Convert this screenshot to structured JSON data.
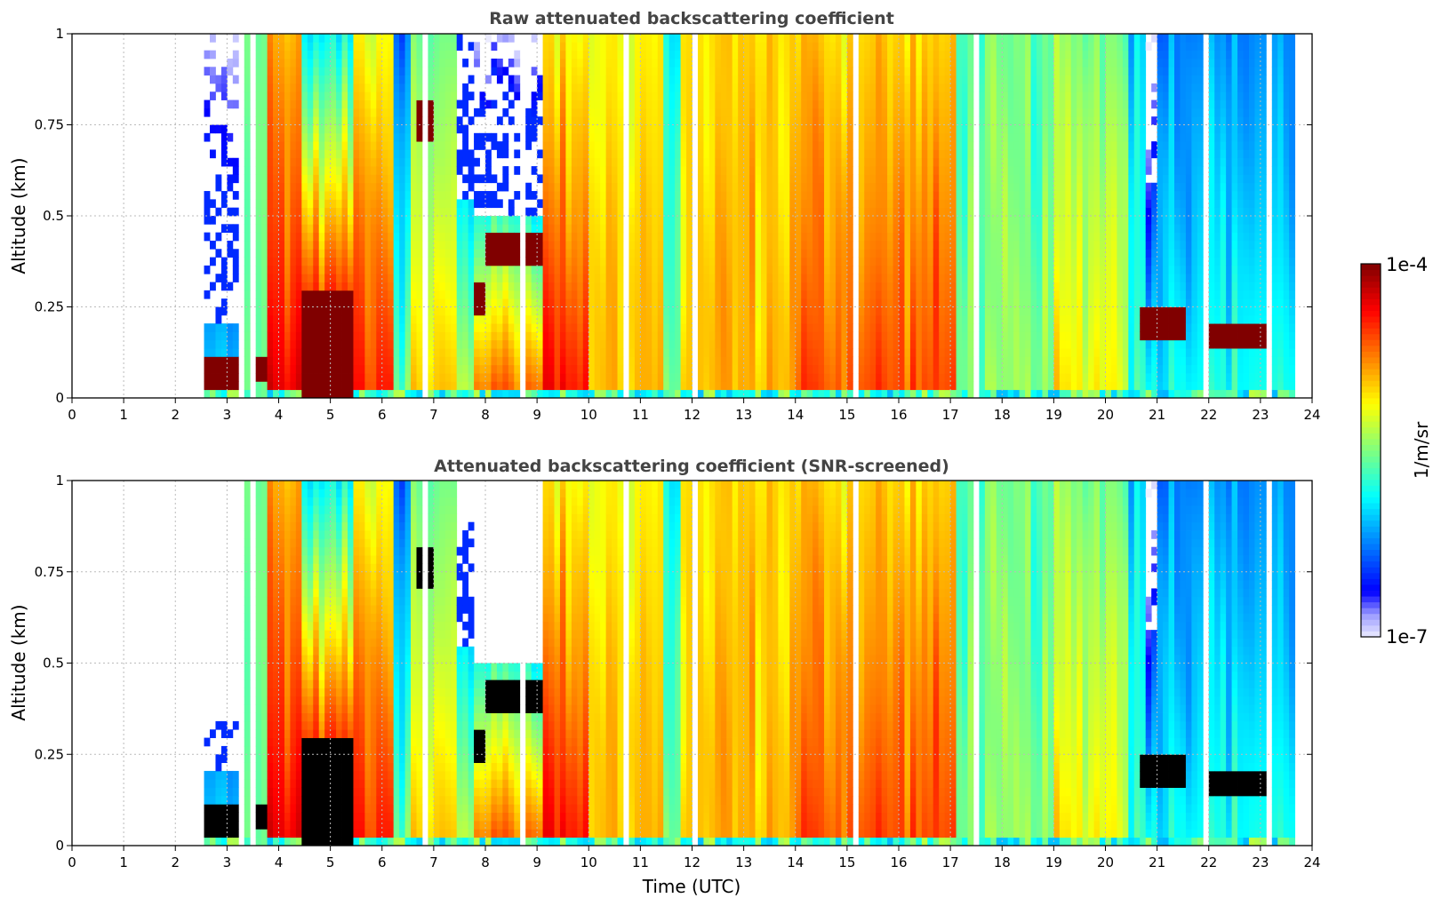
{
  "chart_data": [
    {
      "type": "heatmap",
      "title": "Raw attenuated backscattering coefficient",
      "xlabel": "",
      "ylabel": "Altitude (km)",
      "xlim": [
        0,
        24
      ],
      "ylim": [
        0,
        1
      ],
      "grid": true,
      "screened": false
    },
    {
      "type": "heatmap",
      "title": "Attenuated backscattering coefficient (SNR-screened)",
      "xlabel": "Time (UTC)",
      "ylabel": "Altitude (km)",
      "xlim": [
        0,
        24
      ],
      "ylim": [
        0,
        1
      ],
      "grid": true,
      "screened": true
    }
  ],
  "axes": {
    "xticks": [
      "0",
      "1",
      "2",
      "3",
      "4",
      "5",
      "6",
      "7",
      "8",
      "9",
      "10",
      "11",
      "12",
      "13",
      "14",
      "15",
      "16",
      "17",
      "18",
      "19",
      "20",
      "21",
      "22",
      "23",
      "24"
    ],
    "yticks": [
      {
        "v": 0,
        "label": "0"
      },
      {
        "v": 0.25,
        "label": "0.25"
      },
      {
        "v": 0.5,
        "label": "0.5"
      },
      {
        "v": 0.75,
        "label": "0.75"
      },
      {
        "v": 1,
        "label": "1"
      }
    ]
  },
  "colorbar": {
    "label": "1/m/sr",
    "max_label": "1e-4",
    "min_label": "1e-7",
    "log10_range": [
      -7,
      -4
    ],
    "colormap": "jet (white-lavender low end)"
  },
  "field": {
    "units": "log10(1/m/sr)",
    "saturation_log10": -4.05,
    "surface_band_log10": -5.7,
    "segments": [
      {
        "t0": 2.55,
        "t1": 3.35,
        "surface": -6.0,
        "top": -6.9,
        "sparse_above": 0.2,
        "screen_above": 0.35
      },
      {
        "t0": 3.35,
        "t1": 3.8,
        "surface": -5.5,
        "top": -5.5
      },
      {
        "t0": 3.8,
        "t1": 4.5,
        "surface": -4.3,
        "top": -4.9
      },
      {
        "t0": 4.5,
        "t1": 5.5,
        "surface": -4.0,
        "top": -5.9
      },
      {
        "t0": 5.5,
        "t1": 6.2,
        "surface": -4.4,
        "top": -5.1
      },
      {
        "t0": 6.2,
        "t1": 6.6,
        "surface": -5.5,
        "top": -6.3
      },
      {
        "t0": 6.6,
        "t1": 7.5,
        "surface": -5.0,
        "top": -5.6
      },
      {
        "t0": 7.5,
        "t1": 7.8,
        "surface": -5.3,
        "top": -6.5,
        "sparse_above": 0.55,
        "screen_above": 0.9
      },
      {
        "t0": 7.8,
        "t1": 9.1,
        "surface": -4.6,
        "top": -6.9,
        "sparse_above": 0.5,
        "screen_above": 0.5
      },
      {
        "t0": 9.1,
        "t1": 10.0,
        "surface": -4.4,
        "top": -5.1
      },
      {
        "t0": 10.0,
        "t1": 11.5,
        "surface": -4.9,
        "top": -5.1
      },
      {
        "t0": 11.5,
        "t1": 11.8,
        "surface": -5.6,
        "top": -6.0
      },
      {
        "t0": 11.8,
        "t1": 14.0,
        "surface": -4.9,
        "top": -5.0
      },
      {
        "t0": 14.0,
        "t1": 17.1,
        "surface": -4.6,
        "top": -5.0
      },
      {
        "t0": 17.1,
        "t1": 19.0,
        "surface": -5.5,
        "top": -5.6
      },
      {
        "t0": 19.0,
        "t1": 20.4,
        "surface": -5.1,
        "top": -5.5
      },
      {
        "t0": 20.4,
        "t1": 20.8,
        "surface": -5.7,
        "top": -6.0
      },
      {
        "t0": 20.8,
        "t1": 21.0,
        "surface": -5.8,
        "top": -7.0,
        "sparse_above": 0.6
      },
      {
        "t0": 21.0,
        "t1": 23.7,
        "surface": -5.8,
        "top": -6.2
      }
    ],
    "layers": [
      {
        "t0": 2.55,
        "t1": 3.3,
        "z0": 0.03,
        "z1": 0.11,
        "value": -4.0
      },
      {
        "t0": 3.4,
        "t1": 3.8,
        "z0": 0.04,
        "z1": 0.11,
        "value": -4.0
      },
      {
        "t0": 4.5,
        "t1": 5.5,
        "z0": 0.0,
        "z1": 0.3,
        "value": -4.0
      },
      {
        "t0": 6.7,
        "t1": 7.0,
        "z0": 0.7,
        "z1": 0.82,
        "value": -4.0
      },
      {
        "t0": 7.75,
        "t1": 8.0,
        "z0": 0.22,
        "z1": 0.32,
        "value": -4.0
      },
      {
        "t0": 8.0,
        "t1": 9.1,
        "z0": 0.36,
        "z1": 0.46,
        "value": -4.0
      },
      {
        "t0": 20.7,
        "t1": 21.55,
        "z0": 0.16,
        "z1": 0.24,
        "value": -4.0
      },
      {
        "t0": 22.0,
        "t1": 23.2,
        "z0": 0.13,
        "z1": 0.2,
        "value": -4.0
      }
    ]
  }
}
